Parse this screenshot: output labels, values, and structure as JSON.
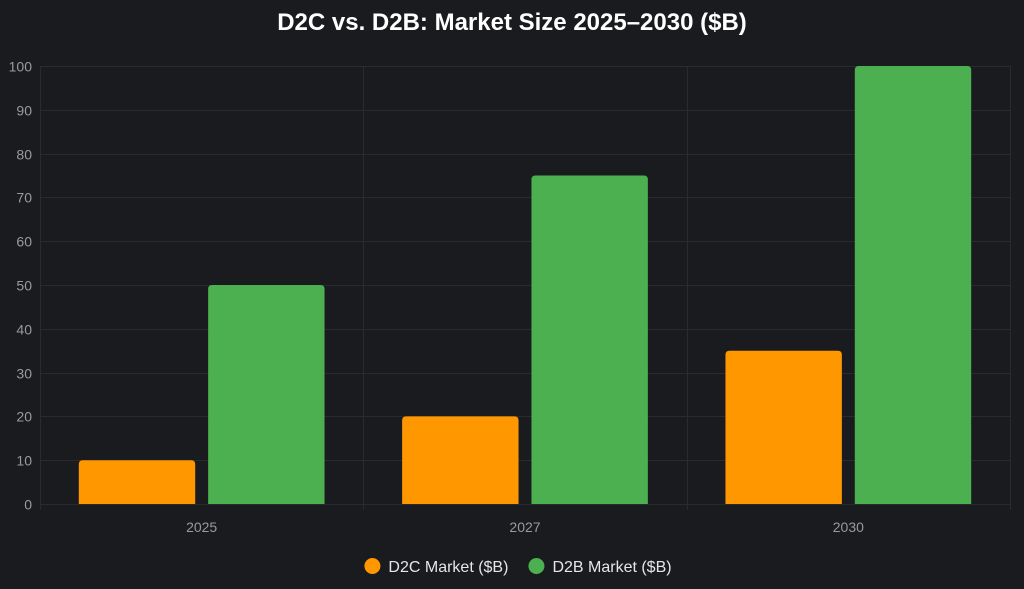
{
  "chart_data": {
    "type": "bar",
    "title": "D2C vs. D2B: Market Size 2025–2030 ($B)",
    "categories": [
      "2025",
      "2027",
      "2030"
    ],
    "series": [
      {
        "name": "D2C Market ($B)",
        "color": "#ff9800",
        "values": [
          10,
          20,
          35
        ]
      },
      {
        "name": "D2B Market ($B)",
        "color": "#4caf50",
        "values": [
          50,
          75,
          100
        ]
      }
    ],
    "xlabel": "",
    "ylabel": "",
    "ylim": [
      0,
      100
    ],
    "yticks": [
      "0",
      "10",
      "20",
      "30",
      "40",
      "50",
      "60",
      "70",
      "80",
      "90",
      "100"
    ],
    "grid": true,
    "legend_position": "bottom"
  },
  "colors": {
    "background": "#1a1b1f",
    "grid": "#2a2b2f",
    "tick_label": "#9a9a9a",
    "title": "#ffffff",
    "legend_text": "#e6e6e6"
  }
}
